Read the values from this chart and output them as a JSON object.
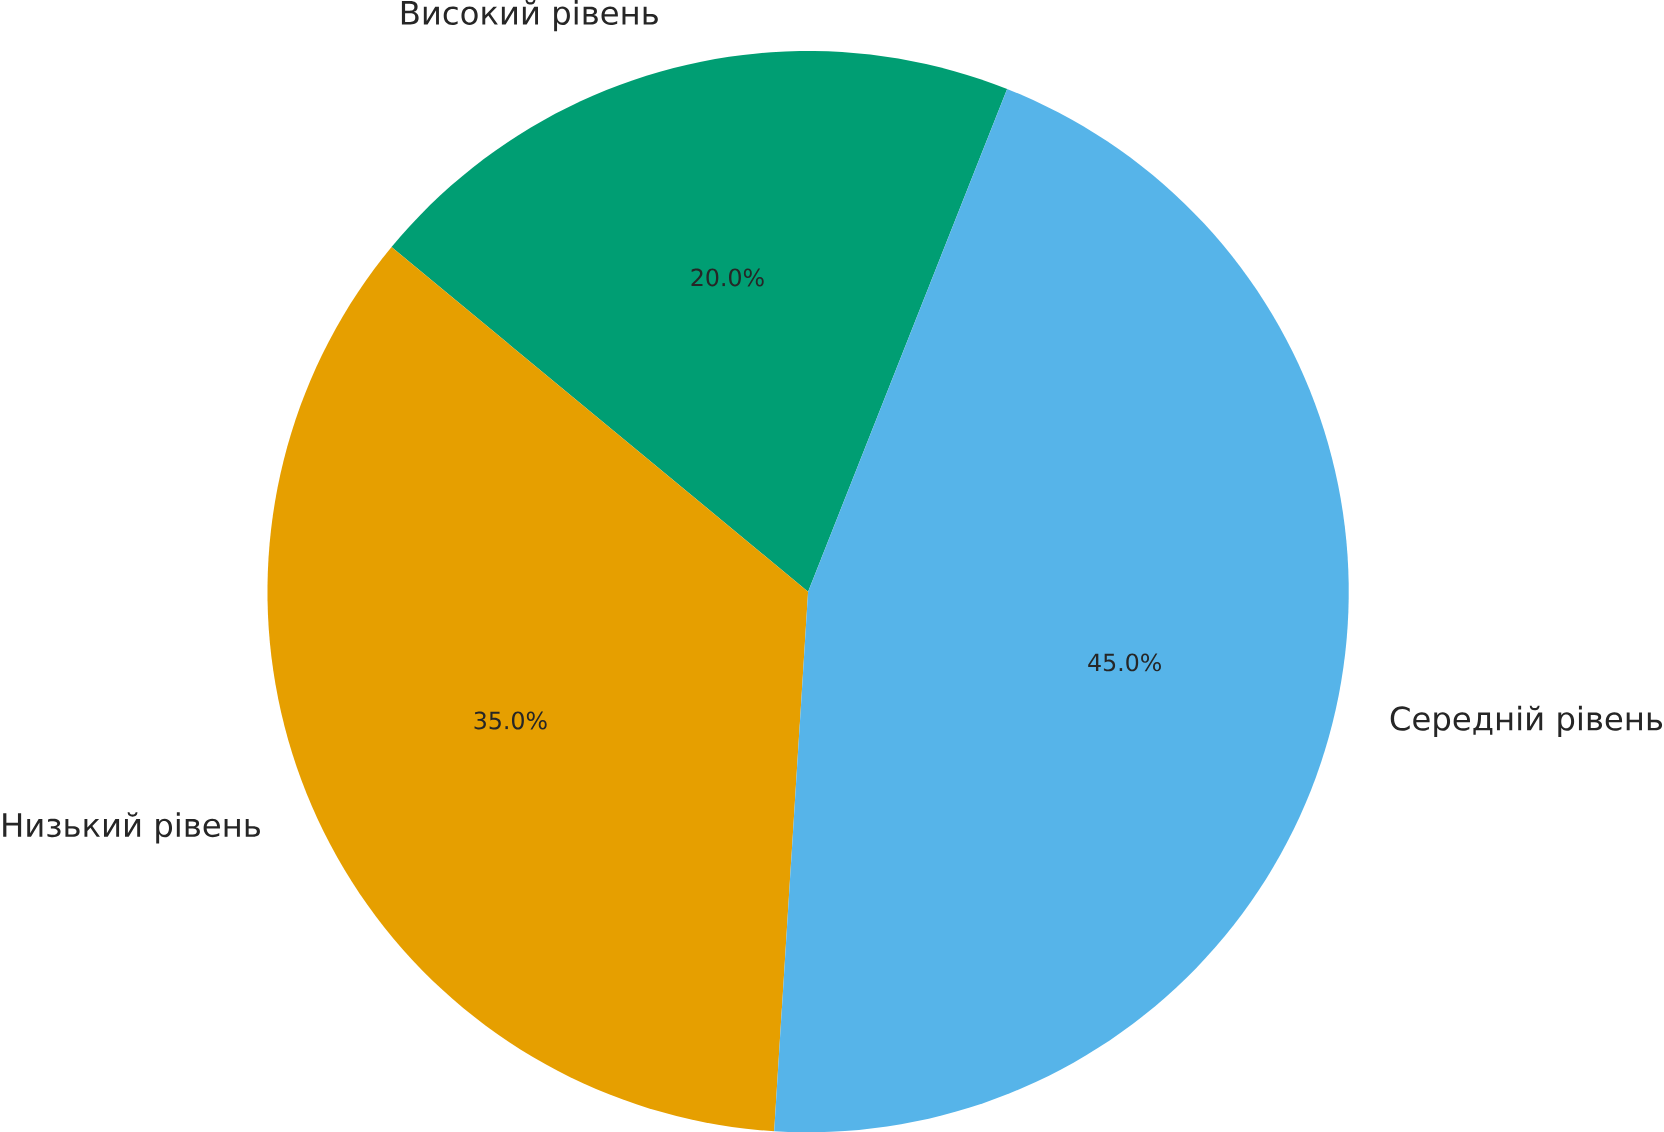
{
  "chart_data": {
    "type": "pie",
    "categories": [
      "Високий рівень",
      "Низький рівень",
      "Середній рівень"
    ],
    "values": [
      20,
      35,
      45
    ],
    "colors": [
      "#009e73",
      "#e69f00",
      "#56b4e9"
    ],
    "value_labels": [
      "20.0%",
      "35.0%",
      "45.0%"
    ]
  }
}
